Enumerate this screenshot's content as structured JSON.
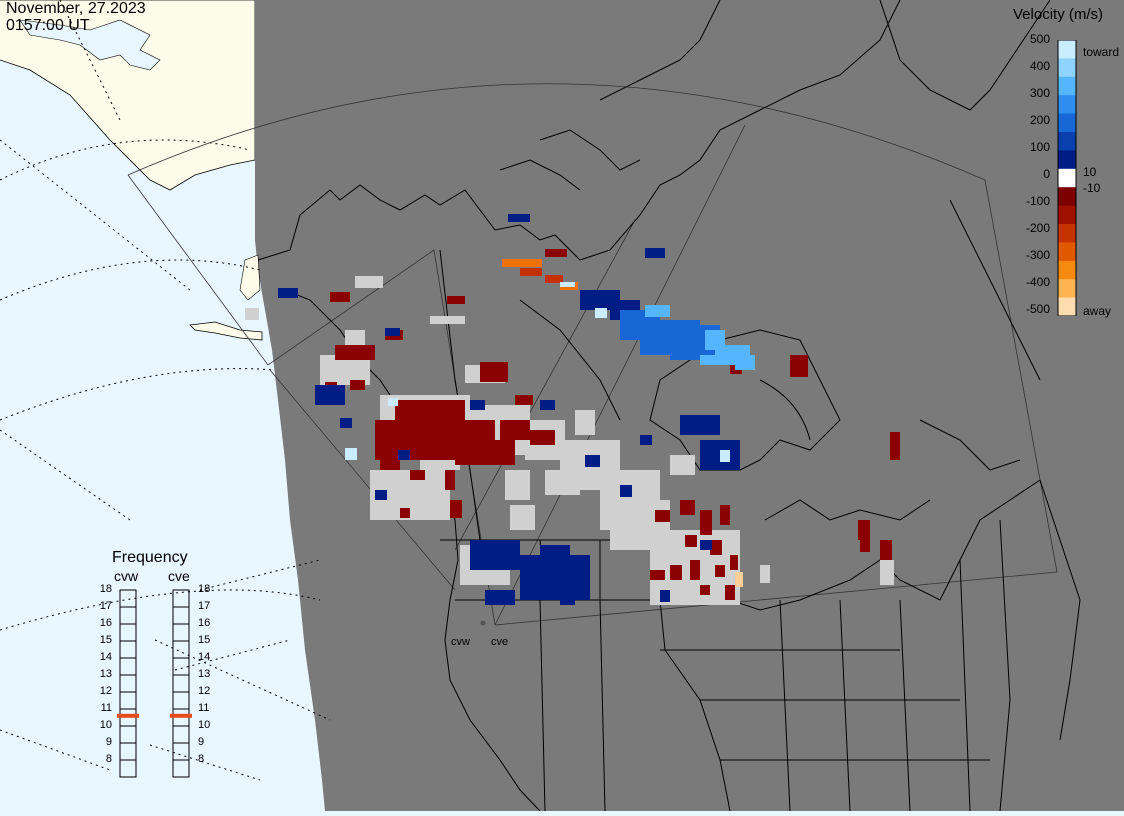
{
  "header": {
    "date": "November, 27.2023",
    "time": "0157:00 UT"
  },
  "legend": {
    "title": "Velocity (m/s)",
    "ticks": [
      "500",
      "400",
      "300",
      "200",
      "100",
      "0",
      "-100",
      "-200",
      "-300",
      "-400",
      "-500"
    ],
    "annotations": {
      "toward": "toward",
      "pos10": "10",
      "neg10": "-10",
      "away": "away"
    },
    "colors": [
      "#c9ecff",
      "#8fd3ff",
      "#55b6ff",
      "#2e8ef0",
      "#1767d6",
      "#0a3fae",
      "#001d86",
      "#ffffff",
      "#7d0000",
      "#a01000",
      "#c43300",
      "#e05800",
      "#f58a10",
      "#ffb454",
      "#ffdcb0"
    ]
  },
  "frequency": {
    "title": "Frequency",
    "radars": [
      "cvw",
      "cve"
    ],
    "ticks": [
      "18",
      "17",
      "16",
      "15",
      "14",
      "13",
      "12",
      "11",
      "10",
      "9",
      "8"
    ],
    "current": [
      10.6,
      10.6
    ],
    "marker_color": "#e84a1a"
  },
  "sites": [
    "cvw",
    "cve"
  ],
  "map": {
    "land_color": "#7a7a7a",
    "ocean_color": "#e8f6ff",
    "ice_color": "#fdfcea"
  }
}
